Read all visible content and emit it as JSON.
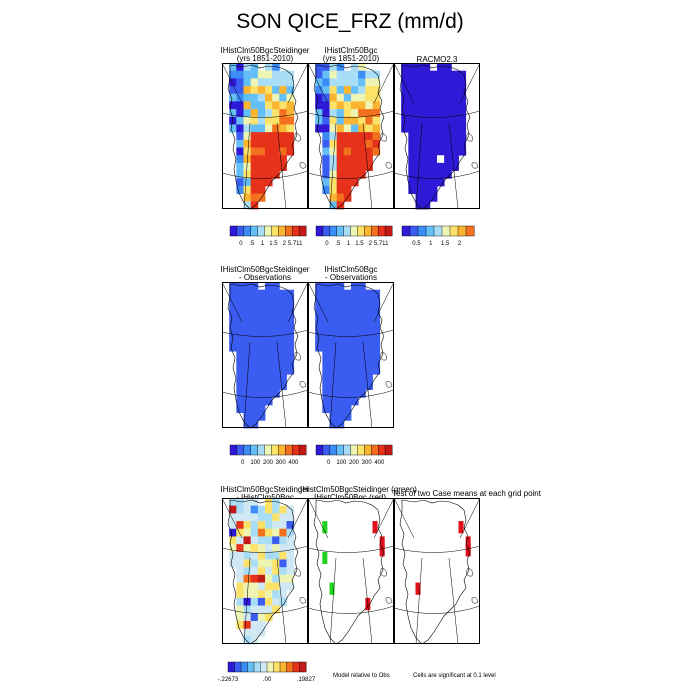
{
  "figure": {
    "title": "SON QICE_FRZ (mm/d)",
    "note_model": "Model relative to Obs",
    "note_sig": "Cells are significant at 0.1 level"
  },
  "row1": {
    "panel1": {
      "title1": "IHistClm50BgcSteidinger",
      "title2": "(yrs 1851-2010)"
    },
    "panel2": {
      "title1": "IHistClm50Bgc",
      "title2": "(yrs 1851-2010)"
    },
    "panel3": {
      "title1": "RACMO2.3",
      "title2": ""
    },
    "cbar_a": {
      "labels": [
        "0",
        ".5",
        "1",
        "1.5",
        "2",
        "5.711"
      ]
    },
    "cbar_b": {
      "labels": [
        "0",
        ".5",
        "1",
        "1.5",
        "2",
        "5.711"
      ]
    },
    "cbar_c": {
      "labels": [
        "0.5",
        "1",
        "1.5",
        "2"
      ]
    }
  },
  "row2": {
    "panel1": {
      "title1": "IHistClm50BgcSteidinger",
      "title2": "- Observations"
    },
    "panel2": {
      "title1": "IHistClm50Bgc",
      "title2": "- Observations"
    },
    "cbar_a": {
      "labels": [
        "0",
        "100",
        "200",
        "300",
        "400"
      ]
    },
    "cbar_b": {
      "labels": [
        "0",
        "100",
        "200",
        "300",
        "400"
      ]
    }
  },
  "row3": {
    "panel1": {
      "title1": "IHistClm50BgcSteidinger",
      "title2": "- IHistClm50Bgc"
    },
    "panel2": {
      "title1": "IHistClm50BgcSteidinger (green)",
      "title2": "IHistClm50Bgc (red)"
    },
    "panel3": {
      "title1": "Test of two Case means at each grid point",
      "title2": ""
    },
    "cbar": {
      "labels": [
        "-.22673",
        ".00",
        ".19827"
      ]
    }
  },
  "colors": {
    "scale_ice": [
      "#2e1ad6",
      "#3a5cf0",
      "#3b8cf5",
      "#64bff7",
      "#a8ddf5",
      "#eef5b2",
      "#fde26a",
      "#fbb531",
      "#f3701f",
      "#e6321a",
      "#c41a17"
    ],
    "scale_diff": [
      "#2e1ad6",
      "#3a5cf0",
      "#3b8cf5",
      "#64bff7",
      "#a8ddf5",
      "#cfe8f3",
      "#eef5b2",
      "#fde26a",
      "#fbb531",
      "#f3701f",
      "#e6321a",
      "#c41a17"
    ],
    "green": "#22d41f",
    "red": "#e0101a"
  },
  "chart_data": [
    {
      "type": "heatmap",
      "title": "IHistClm50BgcSteidinger (yrs 1851-2010)",
      "colorbar_ticks": [
        "0",
        ".5",
        "1",
        "1.5",
        "2",
        "5.711"
      ],
      "colorbar_range": [
        0,
        5.711
      ]
    },
    {
      "type": "heatmap",
      "title": "IHistClm50Bgc (yrs 1851-2010)",
      "colorbar_ticks": [
        "0",
        ".5",
        "1",
        "1.5",
        "2",
        "5.711"
      ],
      "colorbar_range": [
        0,
        5.711
      ]
    },
    {
      "type": "heatmap",
      "title": "RACMO2.3",
      "colorbar_ticks": [
        "0.5",
        "1",
        "1.5",
        "2"
      ]
    },
    {
      "type": "heatmap",
      "title": "IHistClm50BgcSteidinger - Observations",
      "colorbar_ticks": [
        "0",
        "100",
        "200",
        "300",
        "400"
      ]
    },
    {
      "type": "heatmap",
      "title": "IHistClm50Bgc - Observations",
      "colorbar_ticks": [
        "0",
        "100",
        "200",
        "300",
        "400"
      ]
    },
    {
      "type": "heatmap",
      "title": "IHistClm50BgcSteidinger - IHistClm50Bgc",
      "colorbar_ticks": [
        "-.22673",
        ".00",
        ".19827"
      ],
      "colorbar_range": [
        -0.22673,
        0.19827
      ]
    },
    {
      "type": "heatmap",
      "title": "IHistClm50BgcSteidinger (green) IHistClm50Bgc (red)"
    },
    {
      "type": "heatmap",
      "title": "Test of two Case means at each grid point"
    }
  ]
}
